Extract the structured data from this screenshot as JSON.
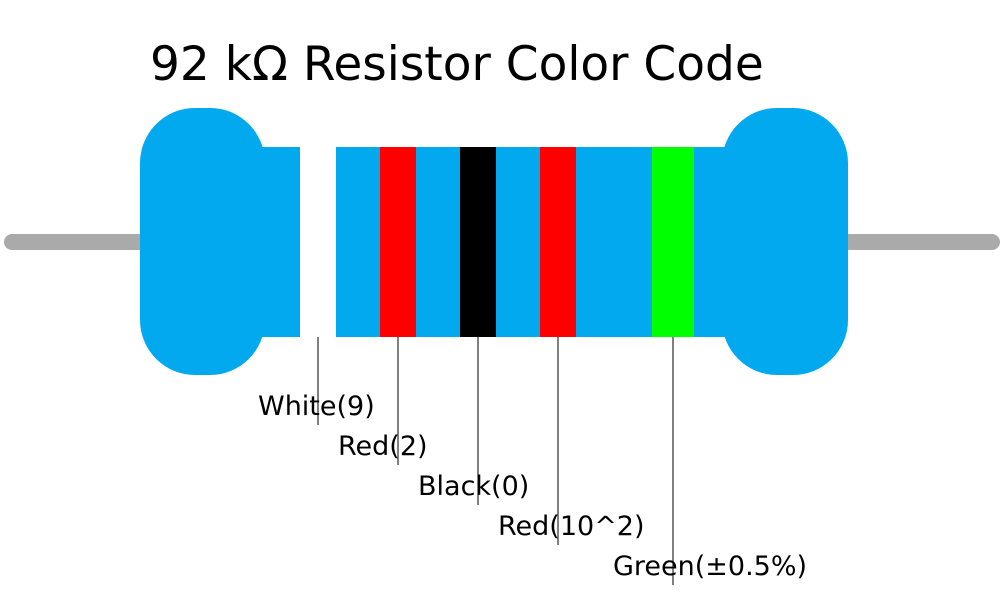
{
  "title": "92 kΩ Resistor Color Code",
  "bands": [
    {
      "label": "White(9)",
      "color": "#ffffff"
    },
    {
      "label": "Red(2)",
      "color": "#ff0000"
    },
    {
      "label": "Black(0)",
      "color": "#000000"
    },
    {
      "label": "Red(10^2)",
      "color": "#ff0000"
    },
    {
      "label": "Green(±0.5%)",
      "color": "#00ff00"
    }
  ]
}
